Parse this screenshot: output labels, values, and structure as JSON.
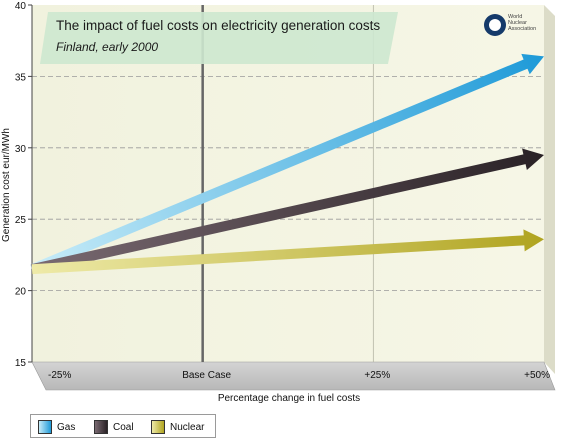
{
  "chart_data": {
    "type": "line",
    "title": "The impact of fuel costs on electricity generation costs",
    "subtitle": "Finland, early 2000",
    "xlabel": "Percentage change in fuel costs",
    "ylabel": "Generation cost eur/MWh",
    "categories": [
      "-25%",
      "Base Case",
      "+25%",
      "+50%"
    ],
    "x": [
      -25,
      0,
      25,
      50
    ],
    "ylim": [
      15,
      40
    ],
    "yticks": [
      15,
      20,
      25,
      30,
      35,
      40
    ],
    "grid": true,
    "legend": "bottom-left",
    "series": [
      {
        "name": "Gas",
        "color": "#4ab0e0",
        "start": [
          -25,
          21.5
        ],
        "end": [
          50,
          36.4
        ]
      },
      {
        "name": "Coal",
        "color": "#3a2e33",
        "start": [
          -25,
          21.5
        ],
        "end": [
          50,
          29.5
        ]
      },
      {
        "name": "Nuclear",
        "color": "#c8be3a",
        "start": [
          -25,
          21.5
        ],
        "end": [
          50,
          23.6
        ]
      }
    ]
  },
  "logo": {
    "line1": "World",
    "line2": "Nuclear",
    "line3": "Association"
  }
}
